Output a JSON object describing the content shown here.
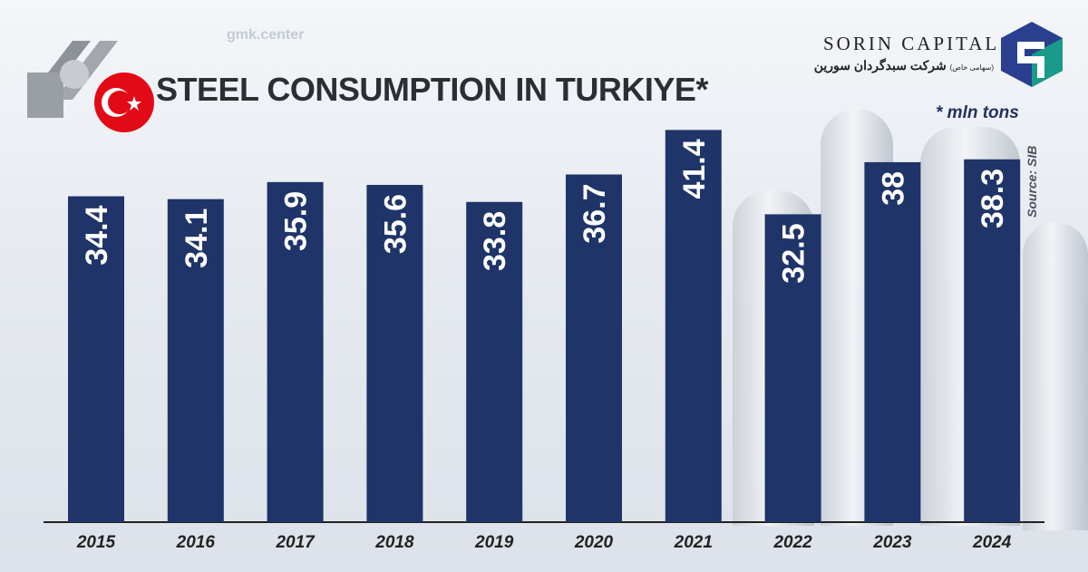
{
  "chart_data": {
    "type": "bar",
    "title": "STEEL CONSUMPTION IN TURKIYE*",
    "unit_note": "* mln tons",
    "source": "Source: SIB",
    "categories": [
      "2015",
      "2016",
      "2017",
      "2018",
      "2019",
      "2020",
      "2021",
      "2022",
      "2023",
      "2024"
    ],
    "values": [
      34.4,
      34.1,
      35.9,
      35.6,
      33.8,
      36.7,
      41.4,
      32.5,
      38,
      38.3
    ],
    "value_labels": [
      "34.4",
      "34.1",
      "35.9",
      "35.6",
      "33.8",
      "36.7",
      "41.4",
      "32.5",
      "38",
      "38.3"
    ],
    "xlabel": "",
    "ylabel": "",
    "ylim": [
      0,
      42
    ],
    "bar_color": "#1f3468",
    "grid": false
  },
  "branding": {
    "name": "SORIN CAPITAL",
    "name_fa": "شرکت سبدگردان سورین",
    "name_fa_suffix": "(سهامی خاص)",
    "watermark": "gmk.center",
    "logo_colors": [
      "#2a3f8f",
      "#1a9a8a"
    ]
  }
}
